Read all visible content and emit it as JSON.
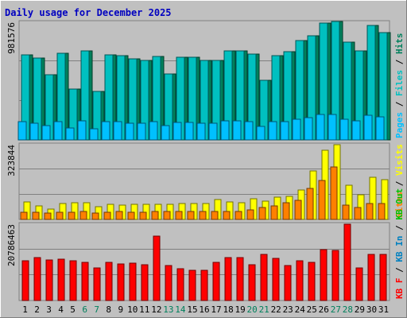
{
  "chart_data": {
    "type": "bar",
    "title": "Daily usage for December 2025",
    "days": [
      "1",
      "2",
      "3",
      "4",
      "5",
      "6",
      "7",
      "8",
      "9",
      "10",
      "11",
      "12",
      "13",
      "14",
      "15",
      "16",
      "17",
      "18",
      "19",
      "20",
      "21",
      "22",
      "23",
      "24",
      "25",
      "26",
      "27",
      "28",
      "29",
      "30",
      "31"
    ],
    "weekend_days": [
      "6",
      "7",
      "13",
      "14",
      "20",
      "21",
      "27",
      "28"
    ],
    "colors": {
      "background": "#C0C0C0",
      "frame": "#808080",
      "grid": "#808080",
      "title": "#0000C0",
      "day_normal": "#000000",
      "day_weekend": "#00805C",
      "pages": "#00C0FF",
      "files": "#00C0C0",
      "hits": "#00805C",
      "visits": "#FFFF00",
      "sites": "#FF8000",
      "kbytes": "#FF0000",
      "kb_in": "#0080C0",
      "kb_out": "#00C000"
    },
    "panels": [
      {
        "name": "hits-files-pages",
        "max_label": "981576",
        "ylim": [
          0,
          981576
        ],
        "legend": [
          {
            "text": "Pages",
            "color_key": "pages"
          },
          {
            "text": "Files",
            "color_key": "files"
          },
          {
            "text": "Hits",
            "color_key": "hits"
          }
        ],
        "series": [
          {
            "name": "Hits",
            "color_key": "hits",
            "values": [
              708000,
              683000,
              547000,
              722000,
              422000,
              741000,
              406000,
              709000,
              706000,
              679000,
              666000,
              699000,
              548000,
              692000,
              692000,
              664000,
              664000,
              745000,
              744000,
              719000,
              495000,
              703000,
              733000,
              828000,
              870000,
              977000,
              987000,
              815000,
              742000,
              955000,
              897000
            ]
          },
          {
            "name": "Files",
            "color_key": "files",
            "values": [
              708000,
              683000,
              547000,
              722000,
              422000,
              741000,
              406000,
              709000,
              706000,
              679000,
              666000,
              699000,
              548000,
              692000,
              692000,
              664000,
              664000,
              745000,
              744000,
              719000,
              495000,
              703000,
              733000,
              828000,
              870000,
              977000,
              987000,
              815000,
              742000,
              955000,
              897000
            ]
          },
          {
            "name": "Pages",
            "color_key": "pages",
            "values": [
              150000,
              140000,
              120000,
              150000,
              100000,
              160000,
              90000,
              150000,
              150000,
              140000,
              140000,
              150000,
              120000,
              145000,
              145000,
              140000,
              140000,
              160000,
              160000,
              150000,
              110000,
              150000,
              155000,
              175000,
              185000,
              210000,
              210000,
              175000,
              160000,
              205000,
              190000
            ]
          }
        ]
      },
      {
        "name": "visits-sites",
        "max_label": "323844",
        "ylim": [
          0,
          323844
        ],
        "legend": [
          {
            "text": "Sites",
            "color_key": "sites"
          },
          {
            "text": "Visits",
            "color_key": "visits"
          }
        ],
        "series": [
          {
            "name": "Visits",
            "color_key": "visits",
            "values": [
              77000,
              59000,
              45000,
              69000,
              72000,
              72000,
              55000,
              66000,
              62000,
              65000,
              65000,
              65000,
              65000,
              68000,
              70000,
              70000,
              85000,
              76000,
              73000,
              88000,
              78000,
              97000,
              100000,
              127000,
              210000,
              300000,
              323844,
              147000,
              108000,
              182000,
              171000
            ]
          },
          {
            "name": "Sites",
            "color_key": "sites",
            "values": [
              32000,
              32000,
              28000,
              32000,
              31000,
              35000,
              27000,
              30000,
              35000,
              30000,
              30000,
              33000,
              33000,
              34000,
              34000,
              33000,
              33000,
              36000,
              35000,
              42000,
              50000,
              60000,
              72000,
              82000,
              135000,
              170000,
              228000,
              62000,
              52000,
              70000,
              68000
            ]
          }
        ]
      },
      {
        "name": "kbytes",
        "max_label": "20786463",
        "ylim": [
          0,
          20786463
        ],
        "legend": [
          {
            "text": "KB F",
            "color_key": "kbytes"
          },
          {
            "text": "KB In",
            "color_key": "kb_in"
          },
          {
            "text": "KB Out",
            "color_key": "kb_out"
          }
        ],
        "series": [
          {
            "name": "KB F",
            "color_key": "kbytes",
            "values": [
              10900000,
              11700000,
              11100000,
              11300000,
              10800000,
              10300000,
              8900000,
              10500000,
              9900000,
              10100000,
              9800000,
              17500000,
              9500000,
              8700000,
              8200000,
              8200000,
              10300000,
              11600000,
              11600000,
              9800000,
              12600000,
              11500000,
              9500000,
              10900000,
              10300000,
              13900000,
              13600000,
              20786463,
              8900000,
              12600000,
              12600000
            ]
          }
        ]
      }
    ]
  }
}
